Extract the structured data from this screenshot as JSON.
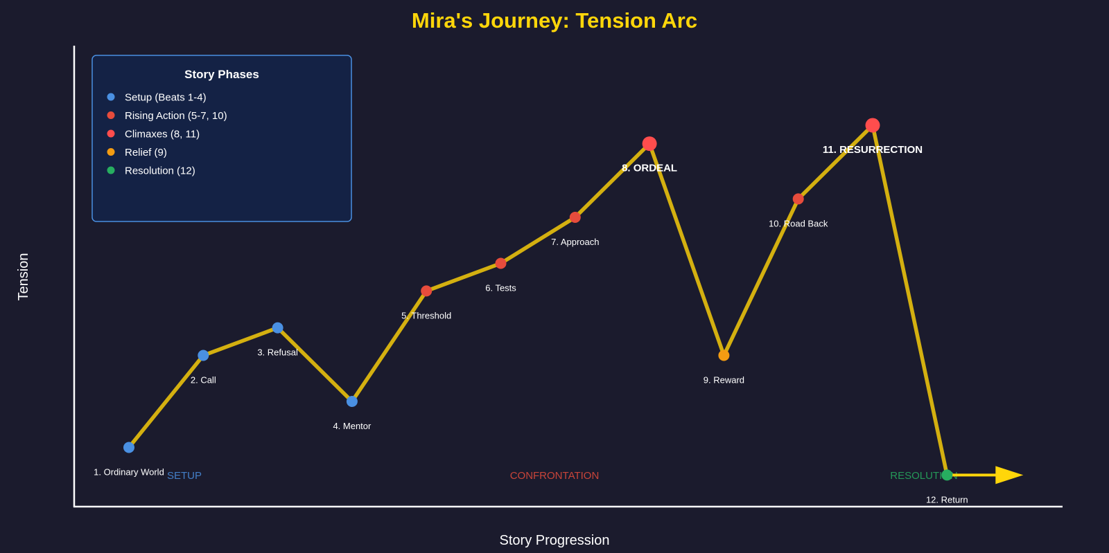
{
  "chart_data": {
    "type": "line",
    "title": "Mira's Journey: Tension Arc",
    "xlabel": "Story Progression",
    "ylabel": "Tension",
    "grid": false,
    "legend_placement": "top-left",
    "colors": {
      "background": "#1b1b2d",
      "title": "#ffd60a",
      "line": "#d4b010",
      "axis": "#ffffff",
      "setup": "#4a90e2",
      "rising": "#e74c3c",
      "climax": "#ff4d4d",
      "relief": "#f39c12",
      "resolution": "#27ae60",
      "arrow": "#ffd60a",
      "legend_bg": "#142245",
      "legend_border": "#4a90e2"
    },
    "points": [
      {
        "x": 1,
        "y": 1.0,
        "label": "1. Ordinary World",
        "phase": "setup"
      },
      {
        "x": 2,
        "y": 3.0,
        "label": "2. Call",
        "phase": "setup"
      },
      {
        "x": 3,
        "y": 3.6,
        "label": "3. Refusal",
        "phase": "setup"
      },
      {
        "x": 4,
        "y": 2.0,
        "label": "4. Mentor",
        "phase": "setup"
      },
      {
        "x": 5,
        "y": 4.4,
        "label": "5. Threshold",
        "phase": "rising"
      },
      {
        "x": 6,
        "y": 5.0,
        "label": "6. Tests",
        "phase": "rising"
      },
      {
        "x": 7,
        "y": 6.0,
        "label": "7. Approach",
        "phase": "rising"
      },
      {
        "x": 8,
        "y": 7.6,
        "label": "8. ORDEAL",
        "phase": "climax"
      },
      {
        "x": 9,
        "y": 3.0,
        "label": "9. Reward",
        "phase": "relief"
      },
      {
        "x": 10,
        "y": 6.4,
        "label": "10. Road Back",
        "phase": "rising"
      },
      {
        "x": 11,
        "y": 8.0,
        "label": "11. RESURRECTION",
        "phase": "climax"
      },
      {
        "x": 12,
        "y": 0.4,
        "label": "12. Return",
        "phase": "resolution"
      }
    ],
    "acts": [
      {
        "label": "SETUP",
        "phase": "setup"
      },
      {
        "label": "CONFRONTATION",
        "phase": "rising"
      },
      {
        "label": "RESOLUTION",
        "phase": "resolution"
      }
    ],
    "legend": {
      "title": "Story Phases",
      "items": [
        {
          "label": "Setup (Beats 1-4)",
          "phase": "setup"
        },
        {
          "label": "Rising Action (5-7, 10)",
          "phase": "rising"
        },
        {
          "label": "Climaxes (8, 11)",
          "phase": "climax"
        },
        {
          "label": "Relief (9)",
          "phase": "relief"
        },
        {
          "label": "Resolution (12)",
          "phase": "resolution"
        }
      ]
    }
  }
}
